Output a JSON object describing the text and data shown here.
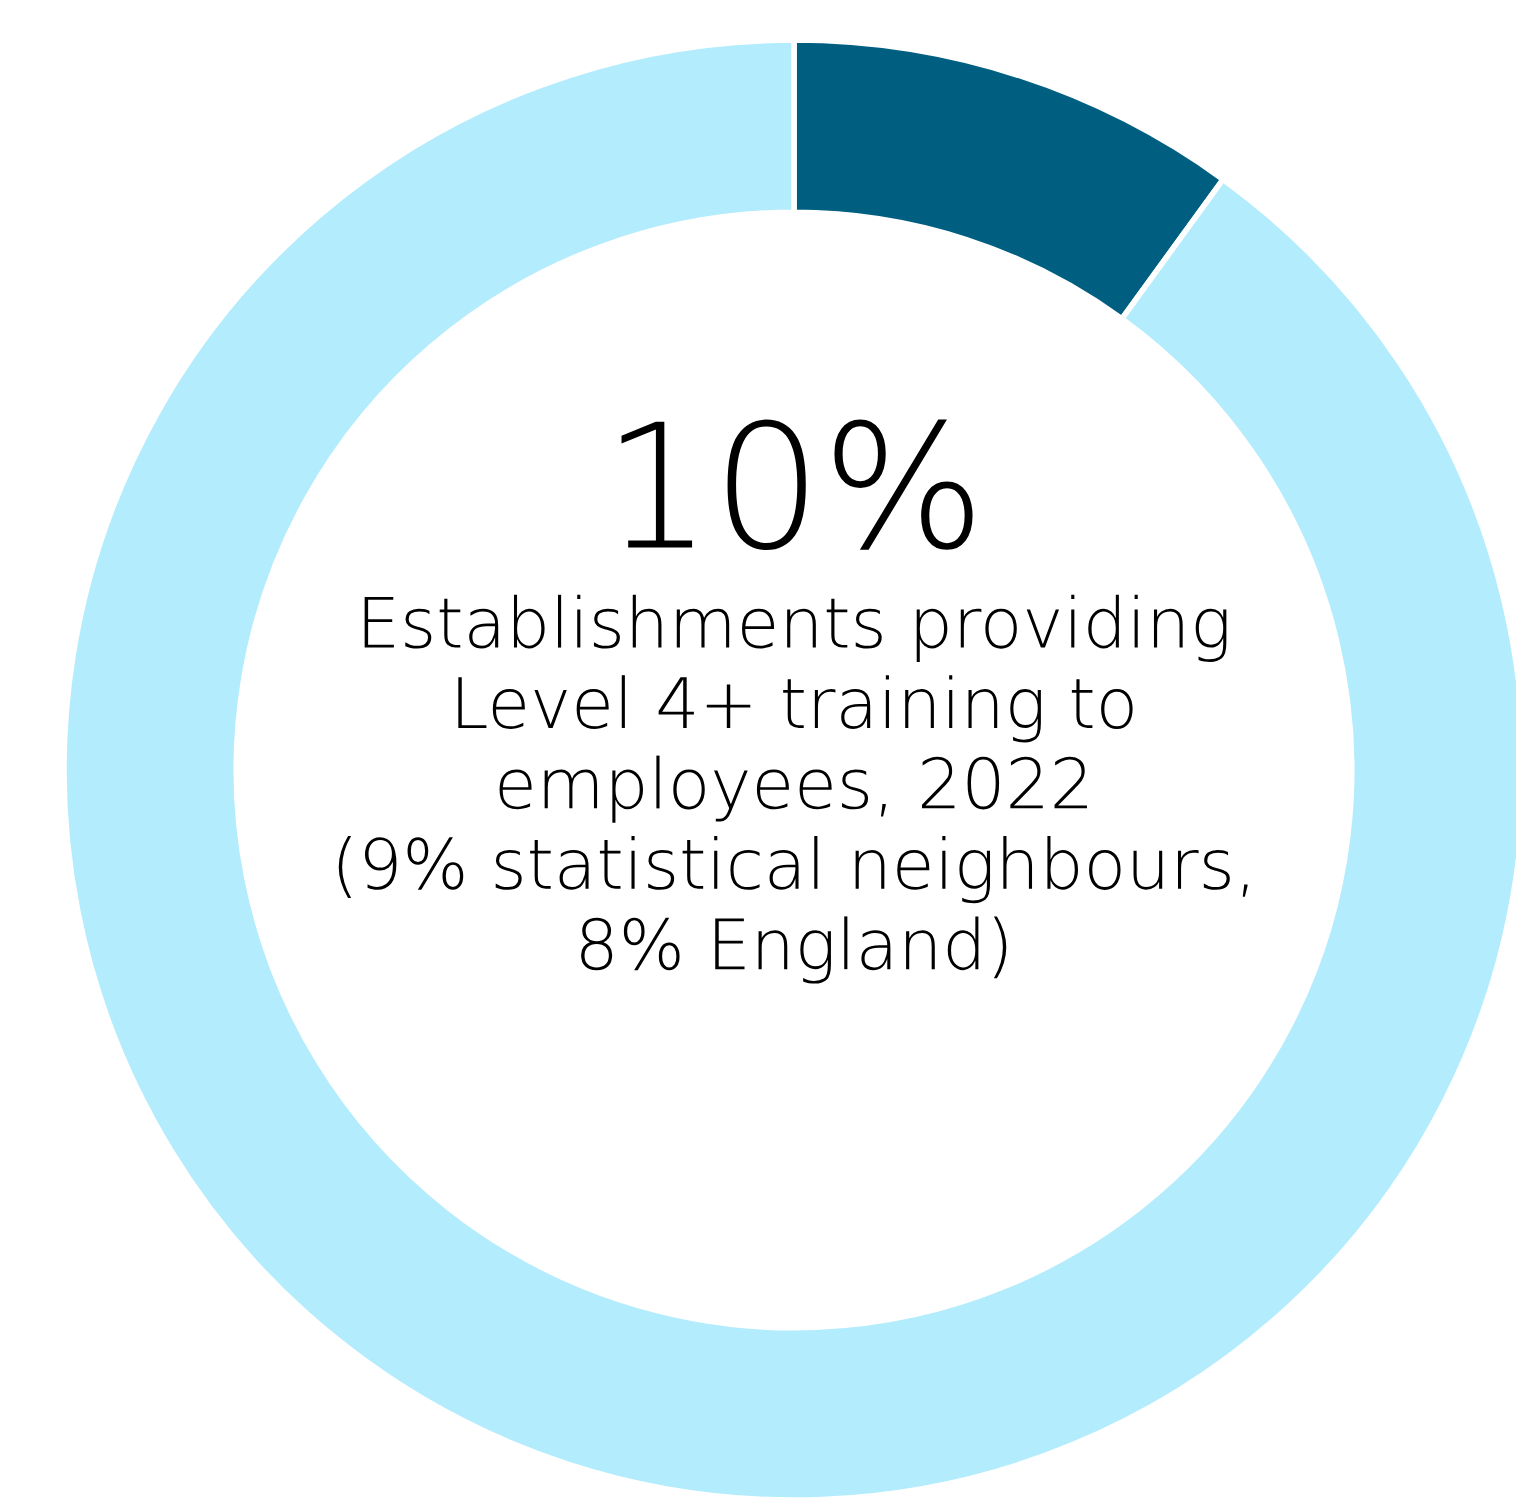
{
  "chart_data": {
    "type": "donut",
    "title": "10%",
    "subtitle": "Establishments providing\nLevel 4+ training to\nemployees, 2022\n(9% statistical neighbours,\n8% England)",
    "categories": [
      null,
      null
    ],
    "values": [
      10,
      90
    ],
    "colors": [
      "#005f80",
      "#b3ecfd"
    ]
  }
}
